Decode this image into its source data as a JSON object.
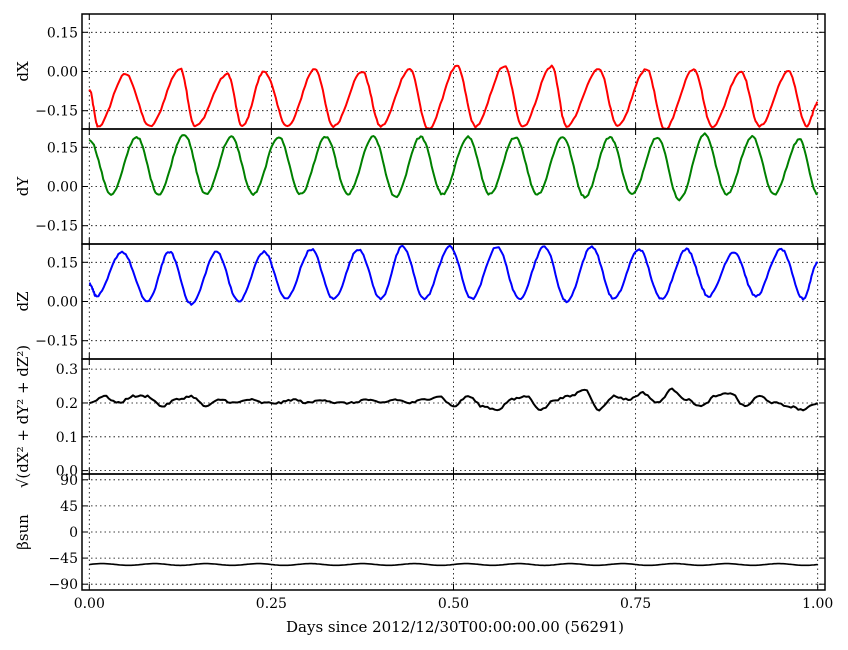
{
  "chart_data": {
    "type": "line",
    "shared_x": {
      "label": "Days since 2012/12/30T00:00:00.00 (56291)",
      "xlim": [
        -0.01,
        1.01
      ],
      "ticks": [
        0.0,
        0.25,
        0.5,
        0.75,
        1.0
      ],
      "tick_labels": [
        "0.00",
        "0.25",
        "0.50",
        "0.75",
        "1.00"
      ]
    },
    "grid": true,
    "panels": [
      {
        "id": "dx",
        "ylabel": "dX",
        "ylim": [
          -0.22,
          0.22
        ],
        "ticks": [
          0.15,
          0.0,
          -0.15
        ],
        "tick_labels": [
          "0.15",
          "0.00",
          "−0.15"
        ],
        "color": "#ff0000",
        "series": {
          "x": [
            0.0,
            0.012,
            0.05,
            0.083,
            0.125,
            0.145,
            0.19,
            0.21,
            0.24,
            0.272,
            0.31,
            0.335,
            0.375,
            0.4,
            0.44,
            0.465,
            0.505,
            0.53,
            0.57,
            0.595,
            0.635,
            0.655,
            0.7,
            0.725,
            0.765,
            0.79,
            0.83,
            0.855,
            0.895,
            0.92,
            0.96,
            0.985,
            1.0
          ],
          "values": [
            -0.07,
            -0.21,
            -0.01,
            -0.21,
            0.01,
            -0.21,
            -0.01,
            -0.21,
            0.0,
            -0.21,
            0.01,
            -0.21,
            0.0,
            -0.21,
            0.01,
            -0.22,
            0.02,
            -0.21,
            0.02,
            -0.21,
            0.02,
            -0.21,
            0.01,
            -0.21,
            0.01,
            -0.22,
            0.01,
            -0.21,
            0.0,
            -0.21,
            0.0,
            -0.21,
            -0.12
          ]
        }
      },
      {
        "id": "dy",
        "ylabel": "dY",
        "ylim": [
          -0.22,
          0.22
        ],
        "ticks": [
          0.15,
          0.0,
          -0.15
        ],
        "tick_labels": [
          "0.15",
          "0.00",
          "−0.15"
        ],
        "color": "#008000",
        "series": {
          "x": [
            0.0,
            0.03,
            0.065,
            0.095,
            0.13,
            0.16,
            0.195,
            0.225,
            0.26,
            0.29,
            0.325,
            0.355,
            0.39,
            0.42,
            0.455,
            0.485,
            0.52,
            0.55,
            0.585,
            0.615,
            0.65,
            0.68,
            0.715,
            0.745,
            0.78,
            0.81,
            0.845,
            0.875,
            0.91,
            0.94,
            0.975,
            1.0
          ],
          "values": [
            0.18,
            -0.03,
            0.19,
            -0.03,
            0.2,
            -0.03,
            0.19,
            -0.03,
            0.19,
            -0.03,
            0.19,
            -0.03,
            0.19,
            -0.04,
            0.19,
            -0.03,
            0.19,
            -0.03,
            0.19,
            -0.03,
            0.19,
            -0.04,
            0.19,
            -0.03,
            0.19,
            -0.05,
            0.2,
            -0.03,
            0.19,
            -0.03,
            0.18,
            -0.03
          ]
        }
      },
      {
        "id": "dz",
        "ylabel": "dZ",
        "ylim": [
          -0.22,
          0.22
        ],
        "ticks": [
          0.15,
          0.0,
          -0.15
        ],
        "tick_labels": [
          "0.15",
          "0.00",
          "−0.15"
        ],
        "color": "#0000ff",
        "series": {
          "x": [
            0.0,
            0.01,
            0.045,
            0.08,
            0.11,
            0.14,
            0.175,
            0.205,
            0.24,
            0.27,
            0.305,
            0.335,
            0.37,
            0.4,
            0.43,
            0.46,
            0.495,
            0.525,
            0.56,
            0.59,
            0.625,
            0.655,
            0.69,
            0.72,
            0.755,
            0.785,
            0.82,
            0.85,
            0.885,
            0.915,
            0.95,
            0.98,
            1.0
          ],
          "values": [
            0.07,
            0.02,
            0.19,
            0.0,
            0.19,
            -0.01,
            0.19,
            0.0,
            0.19,
            0.01,
            0.2,
            0.01,
            0.2,
            0.01,
            0.21,
            0.01,
            0.21,
            0.01,
            0.21,
            0.01,
            0.21,
            0.0,
            0.21,
            0.01,
            0.2,
            0.01,
            0.2,
            0.02,
            0.19,
            0.02,
            0.2,
            0.01,
            0.15
          ]
        }
      },
      {
        "id": "norm",
        "ylabel": "√(dX² + dY² + dZ²)",
        "ylim": [
          -0.01,
          0.33
        ],
        "ticks": [
          0.3,
          0.2,
          0.1,
          0.0
        ],
        "tick_labels": [
          "0.3",
          "0.2",
          "0.1",
          "0.0"
        ],
        "color": "#000000",
        "series": {
          "x": [
            0.0,
            0.02,
            0.04,
            0.06,
            0.08,
            0.1,
            0.12,
            0.14,
            0.16,
            0.18,
            0.2,
            0.22,
            0.24,
            0.26,
            0.28,
            0.3,
            0.32,
            0.34,
            0.36,
            0.38,
            0.4,
            0.42,
            0.44,
            0.46,
            0.48,
            0.5,
            0.52,
            0.54,
            0.56,
            0.58,
            0.6,
            0.62,
            0.64,
            0.66,
            0.68,
            0.7,
            0.72,
            0.74,
            0.76,
            0.78,
            0.8,
            0.82,
            0.84,
            0.86,
            0.88,
            0.9,
            0.92,
            0.94,
            0.96,
            0.98,
            1.0
          ],
          "values": [
            0.2,
            0.22,
            0.2,
            0.22,
            0.22,
            0.19,
            0.21,
            0.22,
            0.19,
            0.21,
            0.2,
            0.21,
            0.2,
            0.2,
            0.21,
            0.2,
            0.21,
            0.2,
            0.2,
            0.21,
            0.2,
            0.21,
            0.2,
            0.21,
            0.22,
            0.19,
            0.22,
            0.19,
            0.18,
            0.21,
            0.22,
            0.18,
            0.21,
            0.22,
            0.24,
            0.18,
            0.22,
            0.21,
            0.23,
            0.2,
            0.24,
            0.21,
            0.19,
            0.22,
            0.23,
            0.19,
            0.22,
            0.2,
            0.19,
            0.18,
            0.2
          ]
        }
      },
      {
        "id": "beta",
        "ylabel": "βsun",
        "ylim": [
          -100,
          100
        ],
        "ticks": [
          90,
          45,
          0,
          -45,
          -90
        ],
        "tick_labels": [
          "90",
          "45",
          "0",
          "−45",
          "−90"
        ],
        "color": "#000000",
        "series": {
          "mean": -56,
          "amplitude": 1.5,
          "cycles": 14
        }
      }
    ]
  }
}
